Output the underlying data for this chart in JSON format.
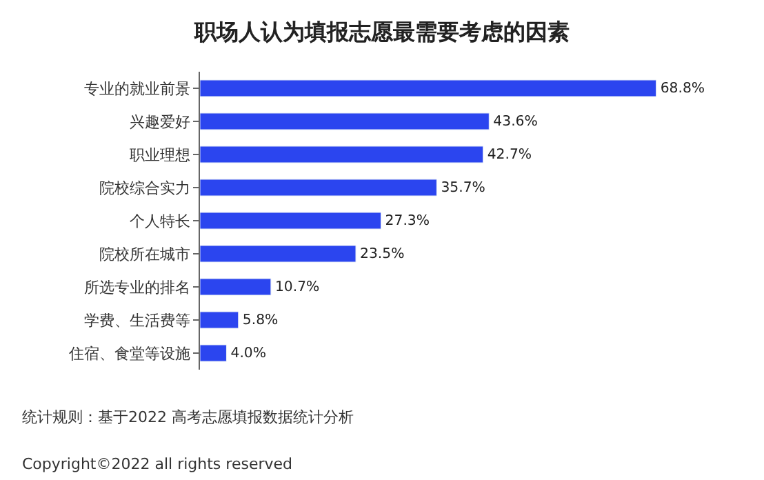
{
  "chart_data": {
    "type": "bar",
    "orientation": "horizontal",
    "title": "职场人认为填报志愿最需要考虑的因素",
    "categories": [
      "专业的就业前景",
      "兴趣爱好",
      "职业理想",
      "院校综合实力",
      "个人特长",
      "院校所在城市",
      "所选专业的排名",
      "学费、生活费等",
      "住宿、食堂等设施"
    ],
    "values": [
      68.8,
      43.6,
      42.7,
      35.7,
      27.3,
      23.5,
      10.7,
      5.8,
      4.0
    ],
    "value_labels": [
      "68.8%",
      "43.6%",
      "42.7%",
      "35.7%",
      "27.3%",
      "23.5%",
      "10.7%",
      "5.8%",
      "4.0%"
    ],
    "color": "#2b45ef",
    "annotations": [
      "统计规则：基于2022 高考志愿填报数据统计分析",
      "Copyright©2022 all rights reserved"
    ]
  }
}
